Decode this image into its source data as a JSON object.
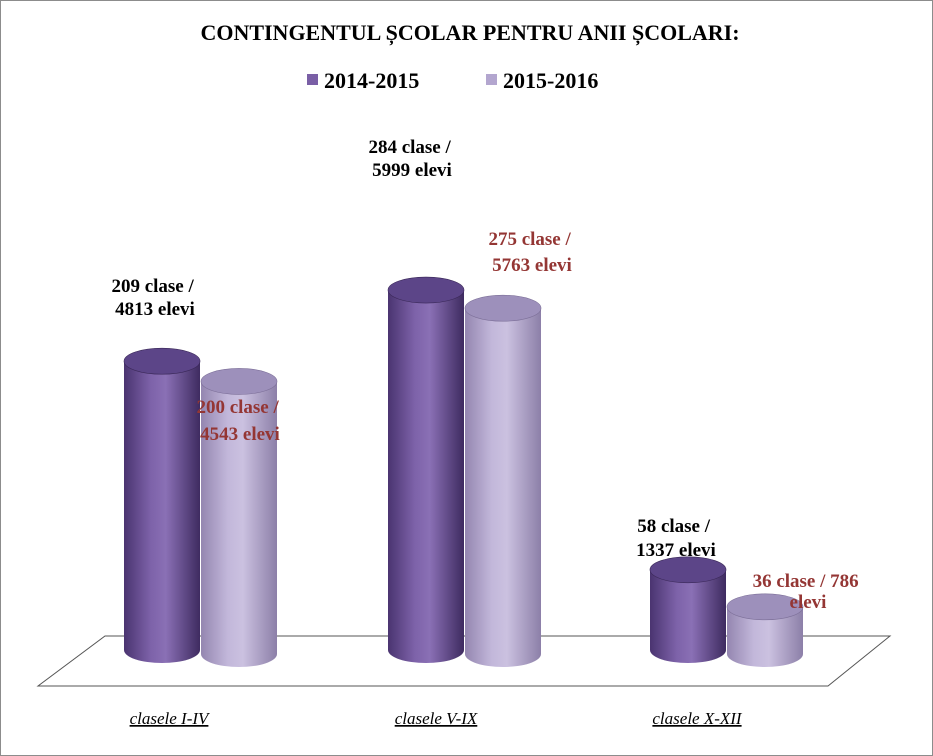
{
  "chart_data": {
    "type": "bar",
    "title": "CONTINGENTUL ȘCOLAR PENTRU ANII ȘCOLARI:",
    "categories": [
      "clasele I-IV",
      "clasele V-IX",
      "clasele X-XII"
    ],
    "series": [
      {
        "name": "2014-2015",
        "color": "#7a5fa6",
        "values": [
          4813,
          5999,
          1337
        ],
        "labels": [
          [
            "209 clase /",
            "4813 elevi"
          ],
          [
            "284 clase /",
            "5999 elevi"
          ],
          [
            "58  clase /",
            "1337 elevi"
          ]
        ]
      },
      {
        "name": "2015-2016",
        "color": "#b3a6cf",
        "values": [
          4543,
          5763,
          786
        ],
        "labels": [
          [
            "200 clase /",
            "4543 elevi"
          ],
          [
            "275 clase /",
            "5763 elevi"
          ],
          [
            "36 clase / 786",
            "elevi"
          ]
        ]
      }
    ],
    "label_colors": [
      "#000000",
      "#943634"
    ],
    "ylim": [
      0,
      7000
    ],
    "grid": false,
    "legend": "top-center"
  }
}
